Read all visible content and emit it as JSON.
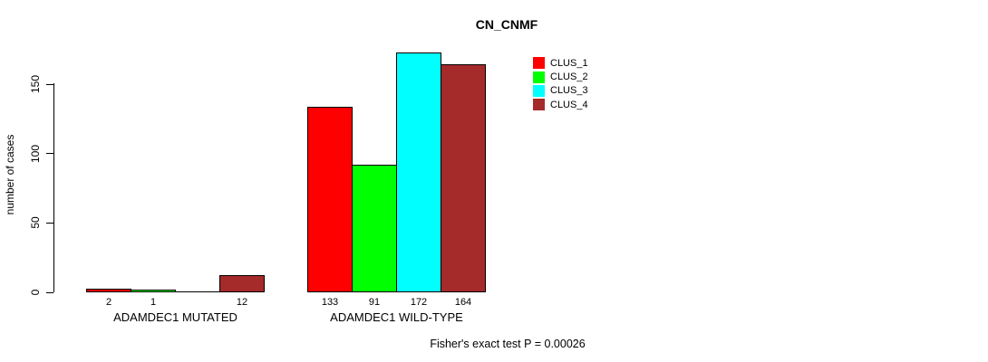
{
  "chart_data": {
    "type": "bar",
    "title": "CN_CNMF",
    "ylabel": "number of cases",
    "xlabel": "",
    "yticks": [
      0,
      50,
      100,
      150
    ],
    "ylim": [
      0,
      175
    ],
    "grid": false,
    "legend_position": "top-right-inside",
    "categories": [
      "ADAMDEC1 MUTATED",
      "ADAMDEC1 WILD-TYPE"
    ],
    "series": [
      {
        "name": "CLUS_1",
        "color": "#FF0000",
        "values": [
          2,
          133
        ]
      },
      {
        "name": "CLUS_2",
        "color": "#00FF00",
        "values": [
          1,
          91
        ]
      },
      {
        "name": "CLUS_3",
        "color": "#00FFFF",
        "values": [
          0,
          172
        ]
      },
      {
        "name": "CLUS_4",
        "color": "#A52A2A",
        "values": [
          12,
          164
        ]
      }
    ],
    "annotation": "Fisher's exact test P = 0.00026"
  }
}
